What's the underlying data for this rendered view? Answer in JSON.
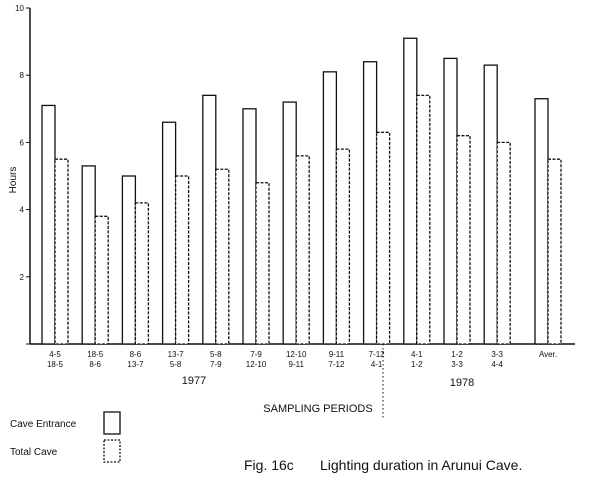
{
  "chart_data": {
    "type": "bar",
    "title": "Lighting duration in Arunui Cave.",
    "figure_label": "Fig. 16c",
    "xlabel": "SAMPLING PERIODS",
    "ylabel": "Hours",
    "ylim": [
      0,
      10
    ],
    "yticks": [
      "0",
      "2",
      "4",
      "6",
      "8",
      "10"
    ],
    "categories": [
      [
        "4-5",
        "18-5"
      ],
      [
        "18-5",
        "8-6"
      ],
      [
        "8-6",
        "13-7"
      ],
      [
        "13-7",
        "5-8"
      ],
      [
        "5-8",
        "7-9"
      ],
      [
        "7-9",
        "12-10"
      ],
      [
        "12-10",
        "9-11"
      ],
      [
        "9-11",
        "7-12"
      ],
      [
        "7-12",
        "4-1"
      ],
      [
        "4-1",
        "1-2"
      ],
      [
        "1-2",
        "3-3"
      ],
      [
        "3-3",
        "4-4"
      ],
      [
        "Aver."
      ]
    ],
    "years": [
      "1977",
      "1978"
    ],
    "series": [
      {
        "name": "Cave Entrance",
        "values": [
          7.1,
          5.3,
          5.0,
          6.6,
          7.4,
          7.0,
          7.2,
          8.1,
          8.4,
          9.1,
          8.5,
          8.3,
          7.3
        ]
      },
      {
        "name": "Total Cave",
        "values": [
          5.5,
          3.8,
          4.2,
          5.0,
          5.2,
          4.8,
          5.6,
          5.8,
          6.3,
          7.4,
          6.2,
          6.0,
          5.5
        ]
      }
    ],
    "grid": false,
    "legend": "bottom-left"
  }
}
